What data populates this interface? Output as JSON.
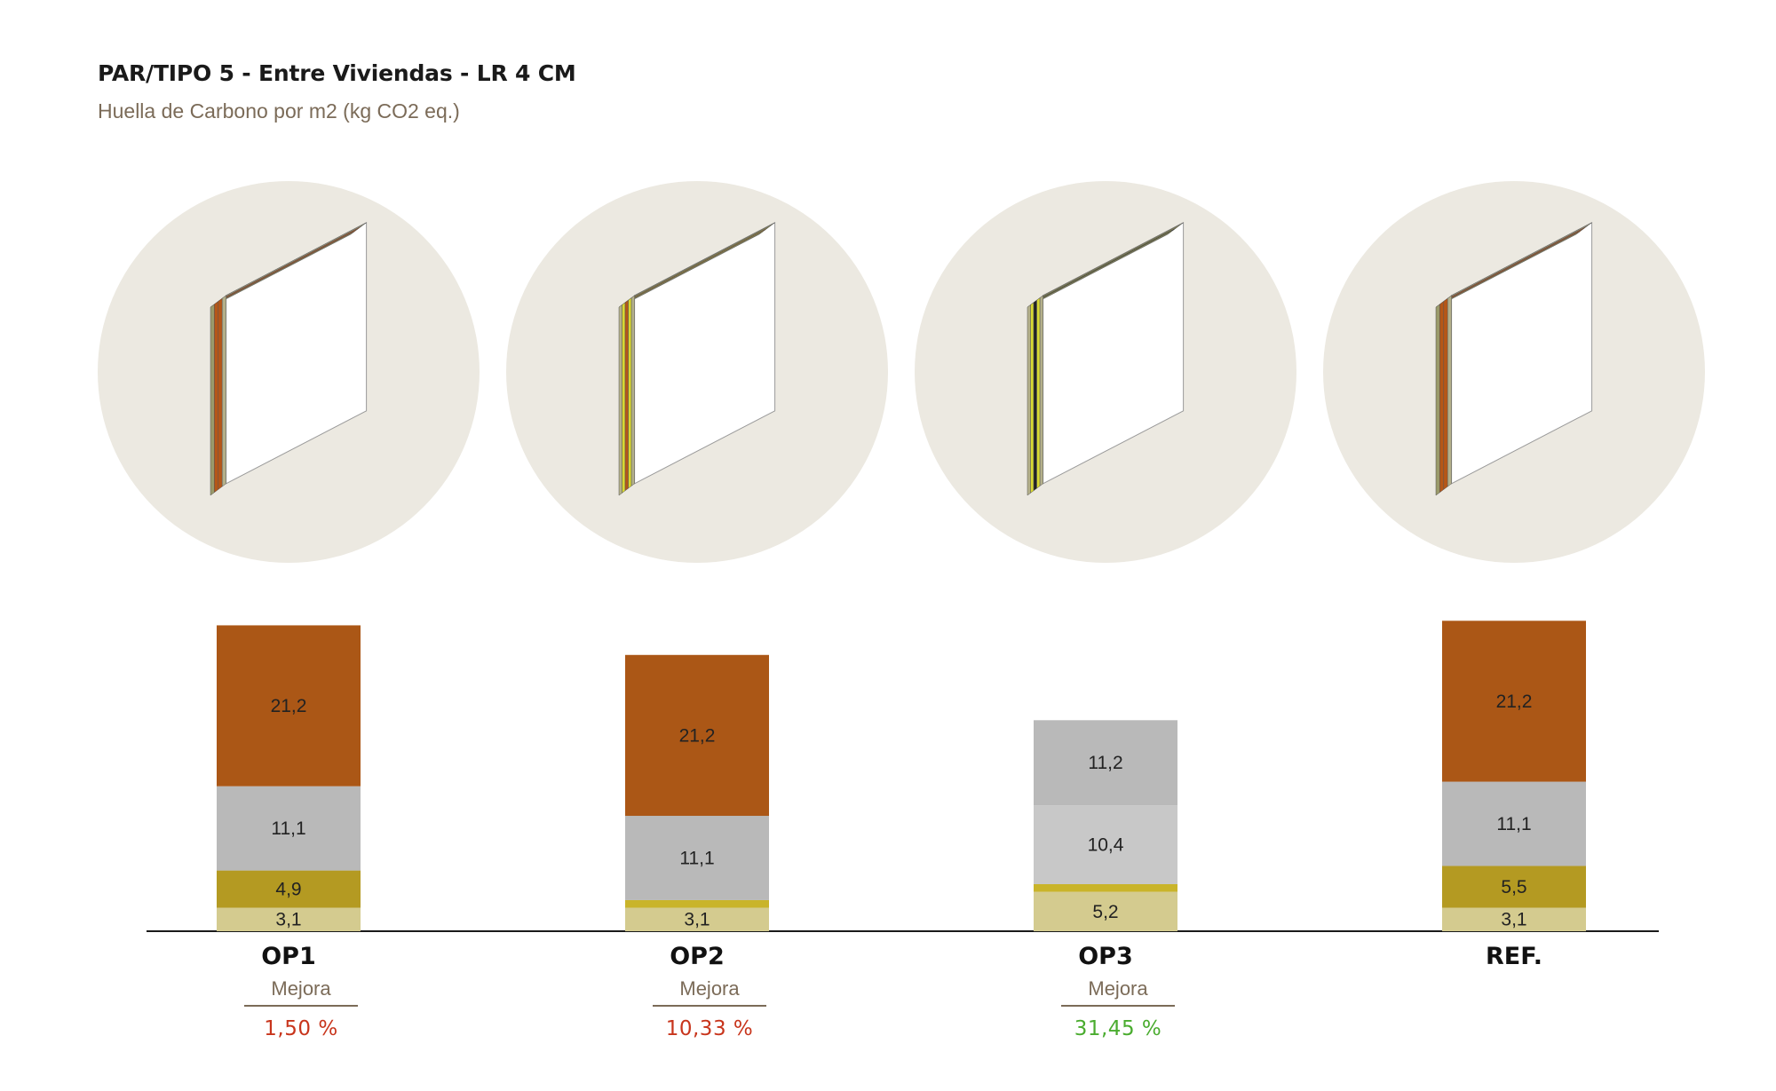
{
  "header": {
    "title": "PAR/TIPO 5 - Entre Viviendas - LR 4 CM",
    "subtitle": "Huella de Carbono por m2 (kg CO2 eq.)"
  },
  "colors": {
    "circle_bg": "#ece9e1",
    "axis": "#1a1a1a",
    "bad": "#c8351c",
    "good": "#4aac2f"
  },
  "panels": [
    {
      "layers": [
        "#9a9a6a",
        "#b55718",
        "#b55718",
        "#b4b08a"
      ]
    },
    {
      "layers": [
        "#b4b08a",
        "#d8d832",
        "#b55718",
        "#d8d832",
        "#b4b08a"
      ]
    },
    {
      "layers": [
        "#b4b08a",
        "#d8d832",
        "#222222",
        "#d8d832",
        "#b4b08a"
      ]
    },
    {
      "layers": [
        "#9a9a6a",
        "#b55718",
        "#b55718",
        "#b4b08a"
      ]
    }
  ],
  "chart_data": {
    "type": "bar",
    "stacked": true,
    "categories": [
      "OP1",
      "OP2",
      "OP3",
      "REF."
    ],
    "series": [
      {
        "color": "#d4cb8f",
        "values": [
          3.1,
          3.1,
          5.2,
          3.1
        ],
        "labels": [
          "3,1",
          "3,1",
          "5,2",
          "3,1"
        ]
      },
      {
        "color": "#c9b42a",
        "values": [
          0,
          1.0,
          1.0,
          0
        ],
        "labels": [
          "",
          "",
          "",
          ""
        ]
      },
      {
        "color": "#b49a22",
        "values": [
          4.9,
          0,
          0,
          5.5
        ],
        "labels": [
          "4,9",
          "",
          "",
          "5,5"
        ]
      },
      {
        "color": "#c8c8c8",
        "values": [
          0,
          0,
          10.4,
          0
        ],
        "labels": [
          "",
          "",
          "10,4",
          ""
        ]
      },
      {
        "color": "#b9b9b9",
        "values": [
          11.1,
          11.1,
          11.2,
          11.1
        ],
        "labels": [
          "11,1",
          "11,1",
          "11,2",
          "11,1"
        ]
      },
      {
        "color": "#ab5716",
        "values": [
          21.2,
          21.2,
          0,
          21.2
        ],
        "labels": [
          "21,2",
          "21,2",
          "",
          "21,2"
        ]
      }
    ],
    "improvement": {
      "label": "Mejora",
      "values": [
        "1,50 %",
        "10,33 %",
        "31,45 %",
        ""
      ],
      "status": [
        "bad",
        "bad",
        "good",
        ""
      ]
    }
  }
}
